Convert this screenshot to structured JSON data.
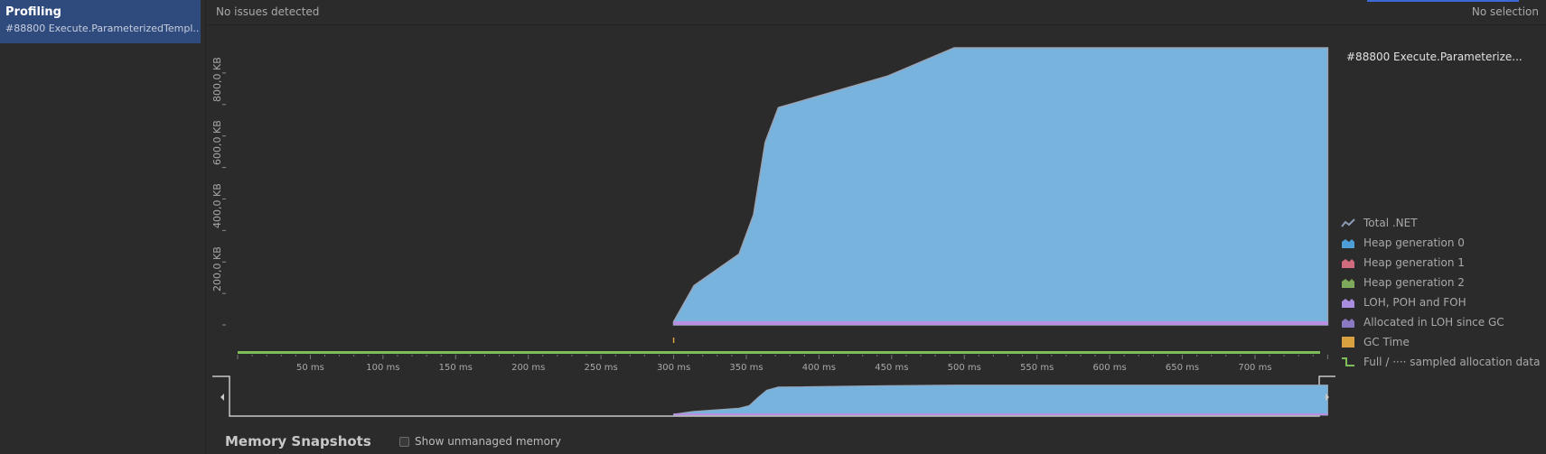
{
  "sidebar": {
    "title": "Profiling",
    "subtitle": "#88800 Execute.ParameterizedTempl..."
  },
  "header": {
    "issues": "No issues detected",
    "selection": "No selection"
  },
  "chart": {
    "series_title": "#88800 Execute.Parameterize...",
    "y_labels": [
      "800,0 KB",
      "600,0 KB",
      "400,0 KB",
      "200,0 KB"
    ],
    "x_labels": [
      "50 ms",
      "100 ms",
      "150 ms",
      "200 ms",
      "250 ms",
      "300 ms",
      "350 ms",
      "400 ms",
      "450 ms",
      "500 ms",
      "550 ms",
      "600 ms",
      "650 ms",
      "700 ms"
    ]
  },
  "legend": [
    {
      "label": "Total .NET",
      "color": "#8a9bb4",
      "icon": "line-icon"
    },
    {
      "label": "Heap generation 0",
      "color": "#4d9ed7",
      "icon": "area-icon"
    },
    {
      "label": "Heap generation 1",
      "color": "#d06b7e",
      "icon": "area-icon"
    },
    {
      "label": "Heap generation 2",
      "color": "#7fa95a",
      "icon": "area-icon"
    },
    {
      "label": "LOH, POH and FOH",
      "color": "#a98ddf",
      "icon": "area-icon"
    },
    {
      "label": "Allocated in LOH since GC",
      "color": "#8c79c4",
      "icon": "area-icon"
    },
    {
      "label": "GC Time",
      "color": "#d9a13f",
      "icon": "square-icon"
    },
    {
      "label": "Full / ···· sampled allocation data",
      "color": "#7fbd5a",
      "icon": "step-icon"
    }
  ],
  "chart_data": {
    "type": "area",
    "xlabel": "",
    "ylabel": "",
    "xlim": [
      0,
      750
    ],
    "ylim": [
      0,
      880
    ],
    "x_unit": "ms",
    "y_unit": "KB",
    "series": [
      {
        "name": "Heap generation 0",
        "x": [
          300,
          314,
          345,
          355,
          363,
          372,
          447,
          493,
          750
        ],
        "y": [
          10,
          125,
          225,
          350,
          580,
          690,
          790,
          880,
          880
        ]
      },
      {
        "name": "LOH, POH and FOH",
        "x": [
          300,
          750
        ],
        "y": [
          10,
          10
        ]
      }
    ]
  }
}
